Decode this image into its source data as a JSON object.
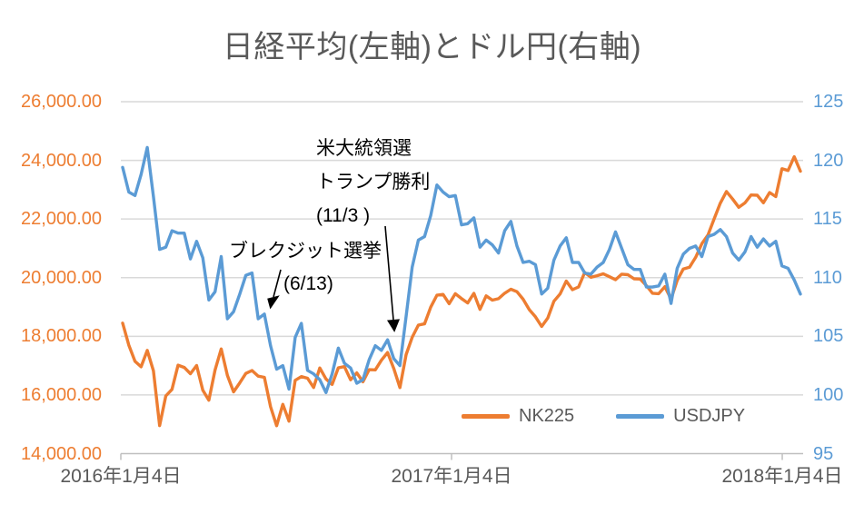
{
  "title": "日経平均(左軸)とドル円(右軸)",
  "legend": {
    "nk225_label": "NK225",
    "usdjpy_label": "USDJPY"
  },
  "annotations": {
    "election": {
      "line1": "米大統領選",
      "line2": "トランプ勝利",
      "line3": "(11/3 )"
    },
    "brexit": {
      "line1": "ブレクジット選挙",
      "line2": "(6/13)"
    }
  },
  "colors": {
    "nk225": "#ED7D31",
    "usdjpy": "#5B9BD5",
    "gridline": "#D9D9D9",
    "axis_line": "#BFBFBF",
    "text_gray": "#595959",
    "annotation_text": "#000000"
  },
  "chart_data": {
    "type": "line",
    "title": "日経平均(左軸)とドル円(右軸)",
    "grid": true,
    "legend_position": "bottom-right-inside",
    "x_tick_labels": [
      "2016年1月4日",
      "2017年1月4日",
      "2018年1月4日"
    ],
    "left_axis": {
      "label_series": "NK225",
      "ylim": [
        14000,
        26000
      ],
      "tick_step": 2000,
      "tick_labels": [
        "26,000.00",
        "24,000.00",
        "22,000.00",
        "20,000.00",
        "18,000.00",
        "16,000.00",
        "14,000.00"
      ]
    },
    "right_axis": {
      "label_series": "USDJPY",
      "ylim": [
        95,
        125
      ],
      "tick_step": 5,
      "tick_labels": [
        "125",
        "120",
        "115",
        "110",
        "105",
        "100",
        "95"
      ]
    },
    "sampling": "weekly closes, 2016-01-04 to 2018-01-26",
    "series": [
      {
        "name": "NK225",
        "axis": "left",
        "color": "#ED7D31",
        "values": [
          18450,
          17698,
          17147,
          16959,
          17518,
          16820,
          14953,
          15967,
          16188,
          17015,
          16938,
          16725,
          17003,
          16164,
          15822,
          16848,
          17572,
          16666,
          16107,
          16412,
          16736,
          16835,
          16642,
          16601,
          15599,
          14952,
          15682,
          15107,
          16498,
          16627,
          16569,
          16254,
          16920,
          16546,
          16361,
          16926,
          16966,
          16519,
          16754,
          16450,
          16860,
          16856,
          17185,
          17446,
          16905,
          16252,
          17374,
          17967,
          18381,
          18426,
          18996,
          19401,
          19428,
          19114,
          19454,
          19287,
          19137,
          19467,
          18918,
          19379,
          19235,
          19284,
          19469,
          19605,
          19522,
          19263,
          18909,
          18665,
          18336,
          18621,
          19197,
          19445,
          19884,
          19591,
          19686,
          20177,
          20013,
          20067,
          20133,
          20033,
          19929,
          20119,
          20100,
          19960,
          19952,
          19730,
          19470,
          19453,
          19691,
          19275,
          19910,
          20296,
          20356,
          20691,
          21156,
          21458,
          22008,
          22539,
          22937,
          22681,
          22397,
          22551,
          22819,
          22811,
          22553,
          22903,
          22765,
          23715,
          23654,
          24124,
          23632
        ]
      },
      {
        "name": "USDJPY",
        "axis": "right",
        "color": "#5B9BD5",
        "values": [
          119.4,
          117.3,
          117.0,
          118.8,
          121.1,
          116.9,
          112.4,
          112.6,
          114.0,
          113.8,
          113.8,
          111.6,
          113.1,
          111.7,
          108.1,
          108.8,
          111.8,
          106.5,
          107.1,
          108.6,
          110.2,
          110.4,
          106.5,
          106.9,
          104.2,
          102.2,
          102.5,
          100.5,
          104.9,
          106.1,
          102.1,
          101.8,
          101.3,
          100.2,
          101.8,
          104.0,
          102.7,
          102.3,
          101.0,
          101.3,
          103.0,
          104.2,
          103.8,
          104.7,
          103.1,
          102.5,
          106.7,
          110.9,
          113.2,
          113.5,
          115.3,
          117.9,
          117.3,
          116.9,
          117.0,
          114.5,
          114.6,
          115.1,
          112.6,
          113.2,
          112.8,
          112.1,
          114.0,
          114.8,
          112.7,
          111.3,
          111.4,
          111.1,
          108.6,
          109.1,
          111.5,
          112.7,
          113.4,
          111.3,
          111.3,
          110.4,
          110.3,
          110.9,
          111.3,
          112.4,
          113.9,
          112.5,
          111.1,
          110.7,
          110.7,
          109.2,
          109.2,
          109.3,
          110.3,
          107.8,
          110.8,
          112.0,
          112.5,
          112.7,
          111.8,
          113.5,
          113.7,
          114.1,
          113.5,
          112.1,
          111.5,
          112.2,
          113.5,
          112.6,
          113.3,
          112.7,
          113.1,
          111.0,
          110.8,
          109.8,
          108.6
        ]
      }
    ],
    "event_markers": [
      {
        "text": "米大統領選 トランプ勝利 (11/3 )",
        "points_to": "USDJPY 2016-11-04 dip"
      },
      {
        "text": "ブレクジット選挙 (6/13)",
        "points_to": "USDJPY 2016-06 decline"
      }
    ]
  }
}
